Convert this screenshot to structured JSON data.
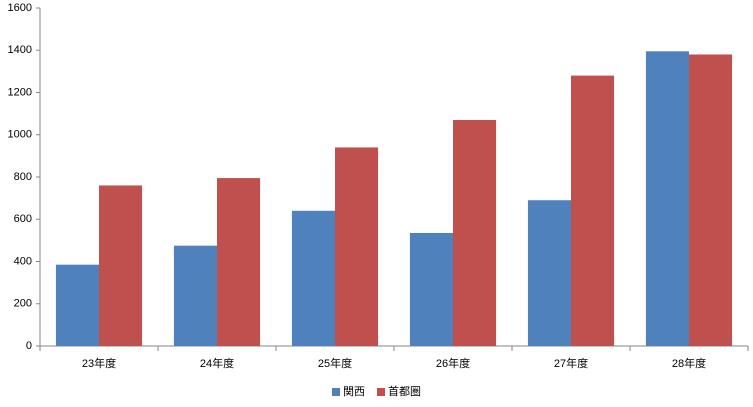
{
  "chart_data": {
    "type": "bar",
    "categories": [
      "23年度",
      "24年度",
      "25年度",
      "26年度",
      "27年度",
      "28年度"
    ],
    "series": [
      {
        "name": "関西",
        "color": "#4f81bd",
        "values": [
          385,
          475,
          640,
          535,
          690,
          1395
        ]
      },
      {
        "name": "首都圏",
        "color": "#c0504d",
        "values": [
          760,
          795,
          940,
          1070,
          1280,
          1380
        ]
      }
    ],
    "ylim": [
      0,
      1600
    ],
    "yticks": [
      0,
      200,
      400,
      600,
      800,
      1000,
      1200,
      1400,
      1600
    ],
    "grid": false,
    "legend": "bottom"
  }
}
